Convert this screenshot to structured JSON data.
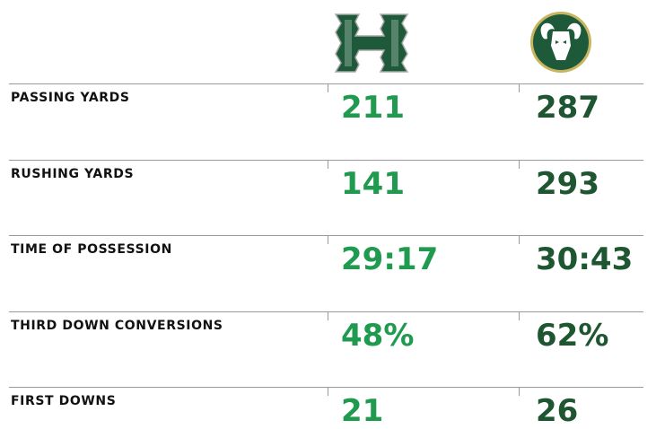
{
  "table": {
    "rows": [
      {
        "label": "PASSING YARDS",
        "values": [
          "211",
          "287"
        ]
      },
      {
        "label": "RUSHING YARDS",
        "values": [
          "141",
          "293"
        ]
      },
      {
        "label": "TIME OF POSSESSION",
        "values": [
          "29:17",
          "30:43"
        ]
      },
      {
        "label": "THIRD DOWN CONVERSIONS",
        "values": [
          "48%",
          "62%"
        ]
      },
      {
        "label": "FIRST DOWNS",
        "values": [
          "21",
          "26"
        ]
      }
    ]
  }
}
